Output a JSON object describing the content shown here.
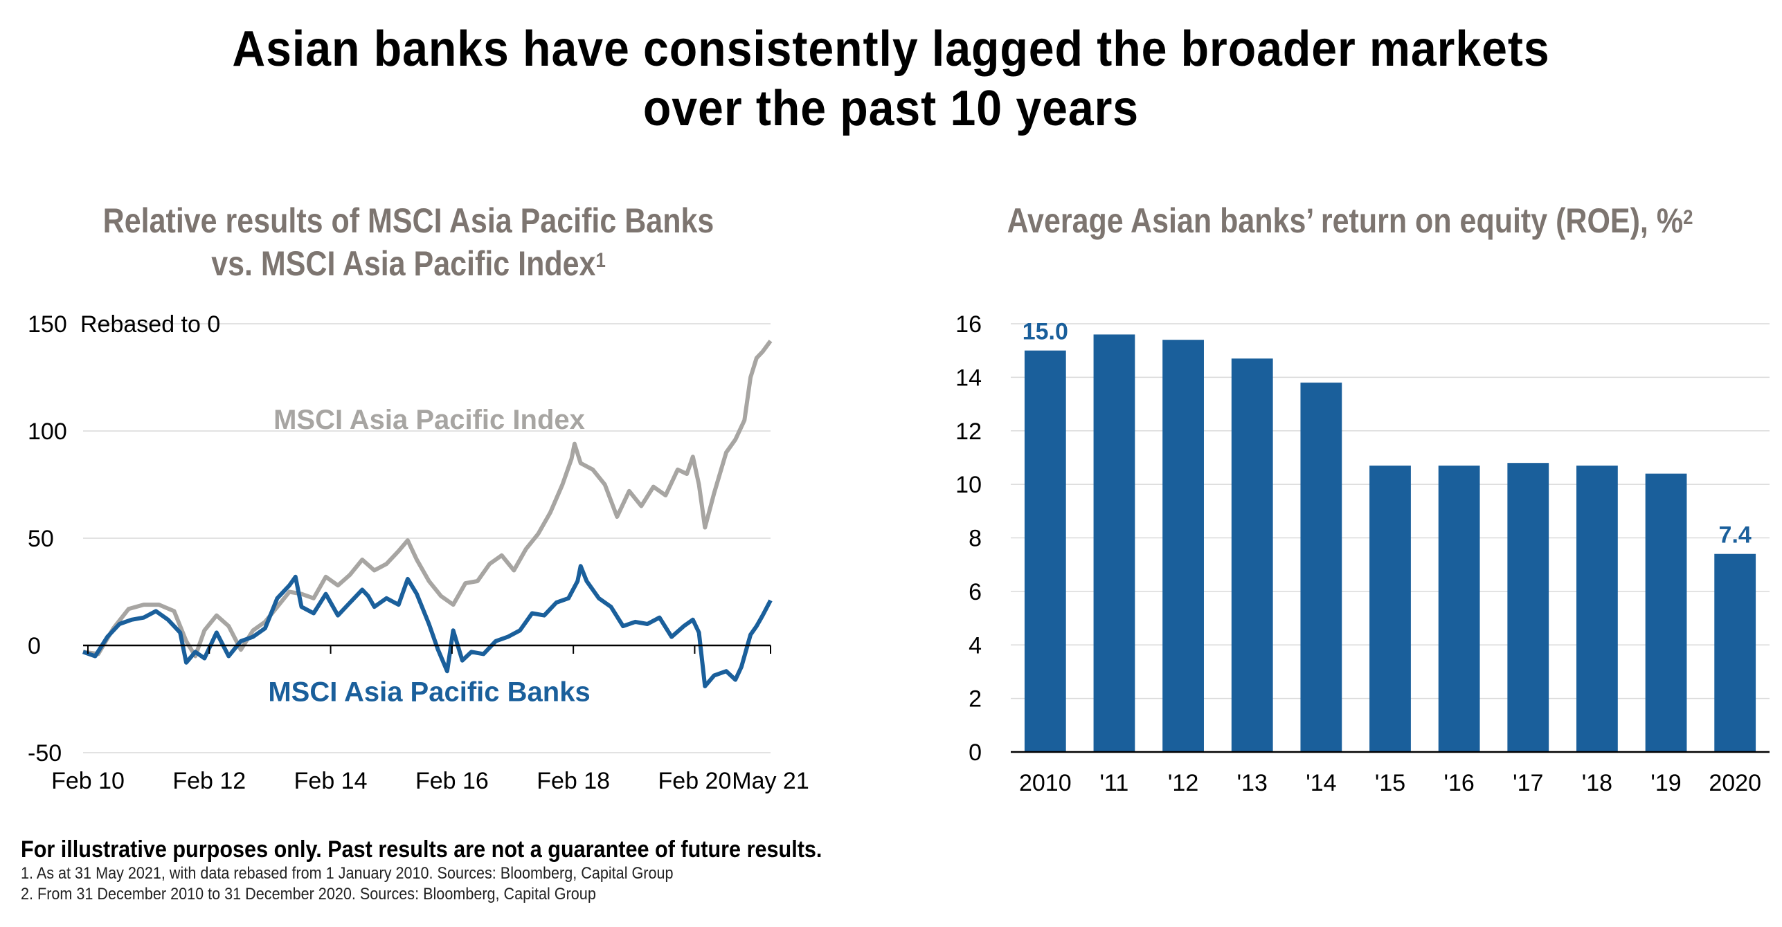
{
  "title_line1": "Asian banks have consistently lagged the broader markets",
  "title_line2": "over the past 10 years",
  "left_subtitle_line1": "Relative results of MSCI Asia Pacific Banks",
  "left_subtitle_line2": "vs. MSCI Asia Pacific Index",
  "left_subtitle_sup": "1",
  "right_subtitle": "Average Asian banks’ return on equity (ROE), %",
  "right_subtitle_sup": "2",
  "disclaimer": "For illustrative purposes only. Past results are not a guarantee of future results.",
  "footnote1": "1. As at 31 May 2021, with data rebased from 1 January 2010. Sources: Bloomberg, Capital Group",
  "footnote2": "2. From 31 December 2010 to 31 December 2020. Sources: Bloomberg, Capital Group",
  "colors": {
    "index": "#a7a5a2",
    "banks": "#1a5f9b",
    "bars": "#1a5f9b",
    "subtitle": "#7d7570",
    "grid": "#d9d9d9"
  },
  "chart_data": [
    {
      "type": "line",
      "unit_label": "Rebased to 0",
      "ylim": [
        -50,
        150
      ],
      "yticks": [
        -50,
        0,
        50,
        100,
        150
      ],
      "xlim": [
        2010.0,
        2021.33
      ],
      "xticks": [
        {
          "x": 2010.08,
          "label": "Feb 10"
        },
        {
          "x": 2012.08,
          "label": "Feb 12"
        },
        {
          "x": 2014.08,
          "label": "Feb 14"
        },
        {
          "x": 2016.08,
          "label": "Feb 16"
        },
        {
          "x": 2018.08,
          "label": "Feb 18"
        },
        {
          "x": 2020.08,
          "label": "Feb 20"
        },
        {
          "x": 2021.33,
          "label": "May 21"
        }
      ],
      "grid": true,
      "series": [
        {
          "name": "MSCI Asia Pacific Index",
          "color": "#a7a5a2",
          "points": [
            [
              2010.0,
              -3
            ],
            [
              2010.25,
              -4
            ],
            [
              2010.5,
              8
            ],
            [
              2010.75,
              17
            ],
            [
              2011.0,
              19
            ],
            [
              2011.25,
              19
            ],
            [
              2011.5,
              16
            ],
            [
              2011.7,
              2
            ],
            [
              2011.85,
              -5
            ],
            [
              2012.0,
              7
            ],
            [
              2012.2,
              14
            ],
            [
              2012.4,
              9
            ],
            [
              2012.6,
              -2
            ],
            [
              2012.8,
              7
            ],
            [
              2013.0,
              11
            ],
            [
              2013.2,
              18
            ],
            [
              2013.4,
              25
            ],
            [
              2013.6,
              24
            ],
            [
              2013.8,
              22
            ],
            [
              2014.0,
              32
            ],
            [
              2014.2,
              28
            ],
            [
              2014.4,
              33
            ],
            [
              2014.6,
              40
            ],
            [
              2014.8,
              35
            ],
            [
              2015.0,
              38
            ],
            [
              2015.2,
              44
            ],
            [
              2015.35,
              49
            ],
            [
              2015.5,
              40
            ],
            [
              2015.7,
              30
            ],
            [
              2015.9,
              23
            ],
            [
              2016.1,
              19
            ],
            [
              2016.3,
              29
            ],
            [
              2016.5,
              30
            ],
            [
              2016.7,
              38
            ],
            [
              2016.9,
              42
            ],
            [
              2017.1,
              35
            ],
            [
              2017.3,
              45
            ],
            [
              2017.5,
              52
            ],
            [
              2017.7,
              62
            ],
            [
              2017.9,
              75
            ],
            [
              2018.05,
              87
            ],
            [
              2018.1,
              94
            ],
            [
              2018.2,
              85
            ],
            [
              2018.4,
              82
            ],
            [
              2018.6,
              75
            ],
            [
              2018.8,
              60
            ],
            [
              2019.0,
              72
            ],
            [
              2019.2,
              65
            ],
            [
              2019.4,
              74
            ],
            [
              2019.6,
              70
            ],
            [
              2019.8,
              82
            ],
            [
              2019.95,
              80
            ],
            [
              2020.05,
              88
            ],
            [
              2020.15,
              75
            ],
            [
              2020.25,
              55
            ],
            [
              2020.4,
              71
            ],
            [
              2020.6,
              90
            ],
            [
              2020.75,
              96
            ],
            [
              2020.9,
              105
            ],
            [
              2021.0,
              125
            ],
            [
              2021.1,
              134
            ],
            [
              2021.2,
              137
            ],
            [
              2021.33,
              142
            ]
          ]
        },
        {
          "name": "MSCI Asia Pacific Banks",
          "color": "#1a5f9b",
          "points": [
            [
              2010.0,
              -3
            ],
            [
              2010.2,
              -5
            ],
            [
              2010.4,
              4
            ],
            [
              2010.6,
              10
            ],
            [
              2010.8,
              12
            ],
            [
              2011.0,
              13
            ],
            [
              2011.2,
              16
            ],
            [
              2011.4,
              12
            ],
            [
              2011.6,
              6
            ],
            [
              2011.7,
              -8
            ],
            [
              2011.85,
              -3
            ],
            [
              2012.0,
              -6
            ],
            [
              2012.2,
              6
            ],
            [
              2012.4,
              -5
            ],
            [
              2012.6,
              2
            ],
            [
              2012.8,
              4
            ],
            [
              2013.0,
              8
            ],
            [
              2013.2,
              22
            ],
            [
              2013.4,
              28
            ],
            [
              2013.5,
              32
            ],
            [
              2013.6,
              18
            ],
            [
              2013.8,
              15
            ],
            [
              2014.0,
              24
            ],
            [
              2014.2,
              14
            ],
            [
              2014.4,
              20
            ],
            [
              2014.6,
              26
            ],
            [
              2014.7,
              23
            ],
            [
              2014.8,
              18
            ],
            [
              2015.0,
              22
            ],
            [
              2015.2,
              19
            ],
            [
              2015.35,
              31
            ],
            [
              2015.5,
              24
            ],
            [
              2015.7,
              10
            ],
            [
              2015.85,
              -2
            ],
            [
              2016.0,
              -12
            ],
            [
              2016.1,
              7
            ],
            [
              2016.25,
              -7
            ],
            [
              2016.4,
              -3
            ],
            [
              2016.6,
              -4
            ],
            [
              2016.8,
              2
            ],
            [
              2017.0,
              4
            ],
            [
              2017.2,
              7
            ],
            [
              2017.4,
              15
            ],
            [
              2017.6,
              14
            ],
            [
              2017.8,
              20
            ],
            [
              2018.0,
              22
            ],
            [
              2018.15,
              30
            ],
            [
              2018.2,
              37
            ],
            [
              2018.3,
              30
            ],
            [
              2018.5,
              22
            ],
            [
              2018.7,
              18
            ],
            [
              2018.9,
              9
            ],
            [
              2019.1,
              11
            ],
            [
              2019.3,
              10
            ],
            [
              2019.5,
              13
            ],
            [
              2019.7,
              4
            ],
            [
              2019.9,
              9
            ],
            [
              2020.05,
              12
            ],
            [
              2020.15,
              6
            ],
            [
              2020.25,
              -19
            ],
            [
              2020.4,
              -14
            ],
            [
              2020.6,
              -12
            ],
            [
              2020.75,
              -16
            ],
            [
              2020.85,
              -10
            ],
            [
              2021.0,
              5
            ],
            [
              2021.1,
              9
            ],
            [
              2021.2,
              14
            ],
            [
              2021.33,
              21
            ]
          ]
        }
      ]
    },
    {
      "type": "bar",
      "categories": [
        "2010",
        "'11",
        "'12",
        "'13",
        "'14",
        "'15",
        "'16",
        "'17",
        "'18",
        "'19",
        "2020"
      ],
      "values": [
        15.0,
        15.6,
        15.4,
        14.7,
        13.8,
        10.7,
        10.7,
        10.8,
        10.7,
        10.4,
        7.4
      ],
      "data_labels": [
        "15.0",
        "",
        "",
        "",
        "",
        "",
        "",
        "",
        "",
        "",
        "7.4"
      ],
      "ylim": [
        0,
        16
      ],
      "yticks": [
        0,
        2,
        4,
        6,
        8,
        10,
        12,
        14,
        16
      ],
      "grid": true
    }
  ]
}
